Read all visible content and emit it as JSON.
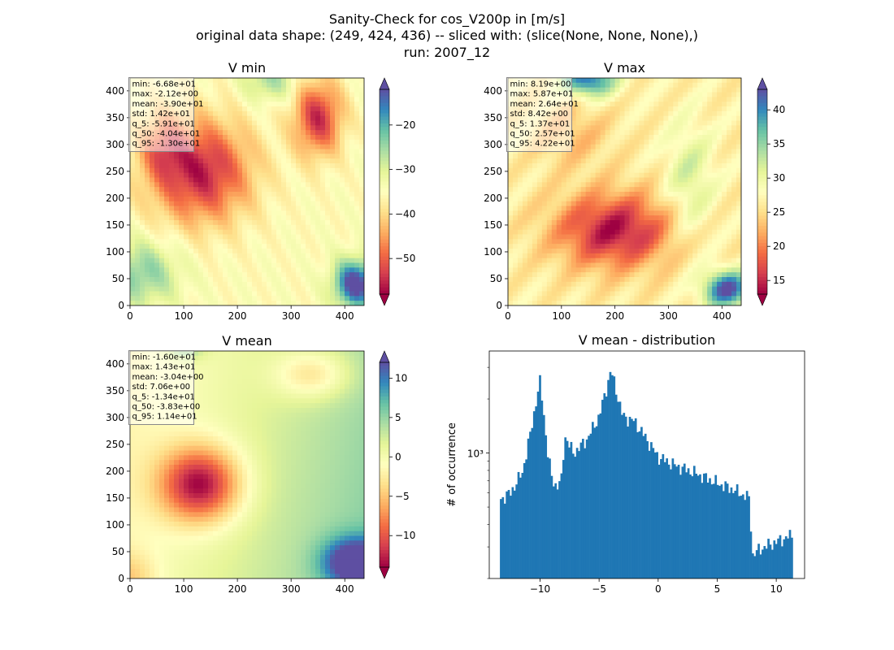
{
  "figure": {
    "title_lines": [
      "Sanity-Check for cos_V200p in [m/s]",
      "original data shape: (249, 424, 436) -- sliced with: (slice(None, None, None),)",
      "run: 2007_12"
    ]
  },
  "chart_data": [
    {
      "type": "heatmap",
      "title": "V min",
      "xlabel": "",
      "ylabel": "",
      "xlim": [
        0,
        436
      ],
      "ylim": [
        0,
        424
      ],
      "xticks": [
        0,
        100,
        200,
        300,
        400
      ],
      "yticks": [
        0,
        50,
        100,
        150,
        200,
        250,
        300,
        350,
        400
      ],
      "colormap": "Spectral",
      "color_range": [
        -58,
        -12
      ],
      "colorbar_ticks": [
        -50,
        -40,
        -30,
        -20
      ],
      "colorbar_extend": "both",
      "stats": [
        "min: -6.68e+01",
        "max: -2.12e+00",
        "mean: -3.90e+01",
        "std: 1.42e+01",
        "q_5: -5.91e+01",
        "q_50: -4.04e+01",
        "q_95: -1.30e+01"
      ],
      "stats_position": "top-left"
    },
    {
      "type": "heatmap",
      "title": "V max",
      "xlabel": "",
      "ylabel": "",
      "xlim": [
        0,
        436
      ],
      "ylim": [
        0,
        424
      ],
      "xticks": [
        0,
        100,
        200,
        300,
        400
      ],
      "yticks": [
        0,
        50,
        100,
        150,
        200,
        250,
        300,
        350,
        400
      ],
      "colormap": "Spectral",
      "color_range": [
        13,
        43
      ],
      "colorbar_ticks": [
        15,
        20,
        25,
        30,
        35,
        40
      ],
      "colorbar_extend": "both",
      "stats": [
        "min: 8.19e+00",
        "max: 5.87e+01",
        "mean: 2.64e+01",
        "std: 8.42e+00",
        "q_5: 1.37e+01",
        "q_50: 2.57e+01",
        "q_95: 4.22e+01"
      ],
      "stats_position": "top-left"
    },
    {
      "type": "heatmap",
      "title": "V mean",
      "xlabel": "",
      "ylabel": "",
      "xlim": [
        0,
        436
      ],
      "ylim": [
        0,
        424
      ],
      "xticks": [
        0,
        100,
        200,
        300,
        400
      ],
      "yticks": [
        0,
        50,
        100,
        150,
        200,
        250,
        300,
        350,
        400
      ],
      "colormap": "Spectral",
      "color_range": [
        -14,
        12
      ],
      "colorbar_ticks": [
        -10,
        -5,
        0,
        5,
        10
      ],
      "colorbar_extend": "both",
      "stats": [
        "min: -1.60e+01",
        "max: 1.43e+01",
        "mean: -3.04e+00",
        "std: 7.06e+00",
        "q_5: -1.34e+01",
        "q_50: -3.83e+00",
        "q_95: 1.14e+01"
      ],
      "stats_position": "top-left"
    },
    {
      "type": "bar",
      "subtype": "histogram",
      "title": "V mean - distribution",
      "xlabel": "",
      "ylabel": "# of occurrence",
      "yscale": "log",
      "xlim": [
        -14.3,
        12.4
      ],
      "ylim": [
        200,
        3700
      ],
      "xticks": [
        -10,
        -5,
        0,
        5,
        10
      ],
      "xtick_labels": [
        "−10",
        "−5",
        "0",
        "5",
        "10"
      ],
      "yticks": [
        1000
      ],
      "ytick_labels": [
        "10³"
      ],
      "color": "#1f77b4",
      "bin_range": [
        -13.4,
        11.4
      ],
      "profile_x": [
        -13.4,
        -12.5,
        -11.5,
        -10.8,
        -10.3,
        -10.0,
        -9.7,
        -9.4,
        -9.0,
        -8.6,
        -8.2,
        -7.9,
        -7.5,
        -7.2,
        -6.8,
        -6.0,
        -5.0,
        -4.3,
        -4.0,
        -3.6,
        -3.0,
        -2.0,
        -1.0,
        0.0,
        1.5,
        3.0,
        5.0,
        6.5,
        7.7,
        8.0,
        8.4,
        9.0,
        10.0,
        11.4
      ],
      "profile_y": [
        550,
        600,
        780,
        1300,
        2000,
        2500,
        1700,
        1050,
        720,
        650,
        700,
        1250,
        1100,
        1000,
        1050,
        1200,
        1600,
        2400,
        2900,
        2300,
        1600,
        1500,
        1200,
        950,
        850,
        780,
        680,
        620,
        560,
        270,
        285,
        300,
        320,
        350
      ]
    }
  ]
}
